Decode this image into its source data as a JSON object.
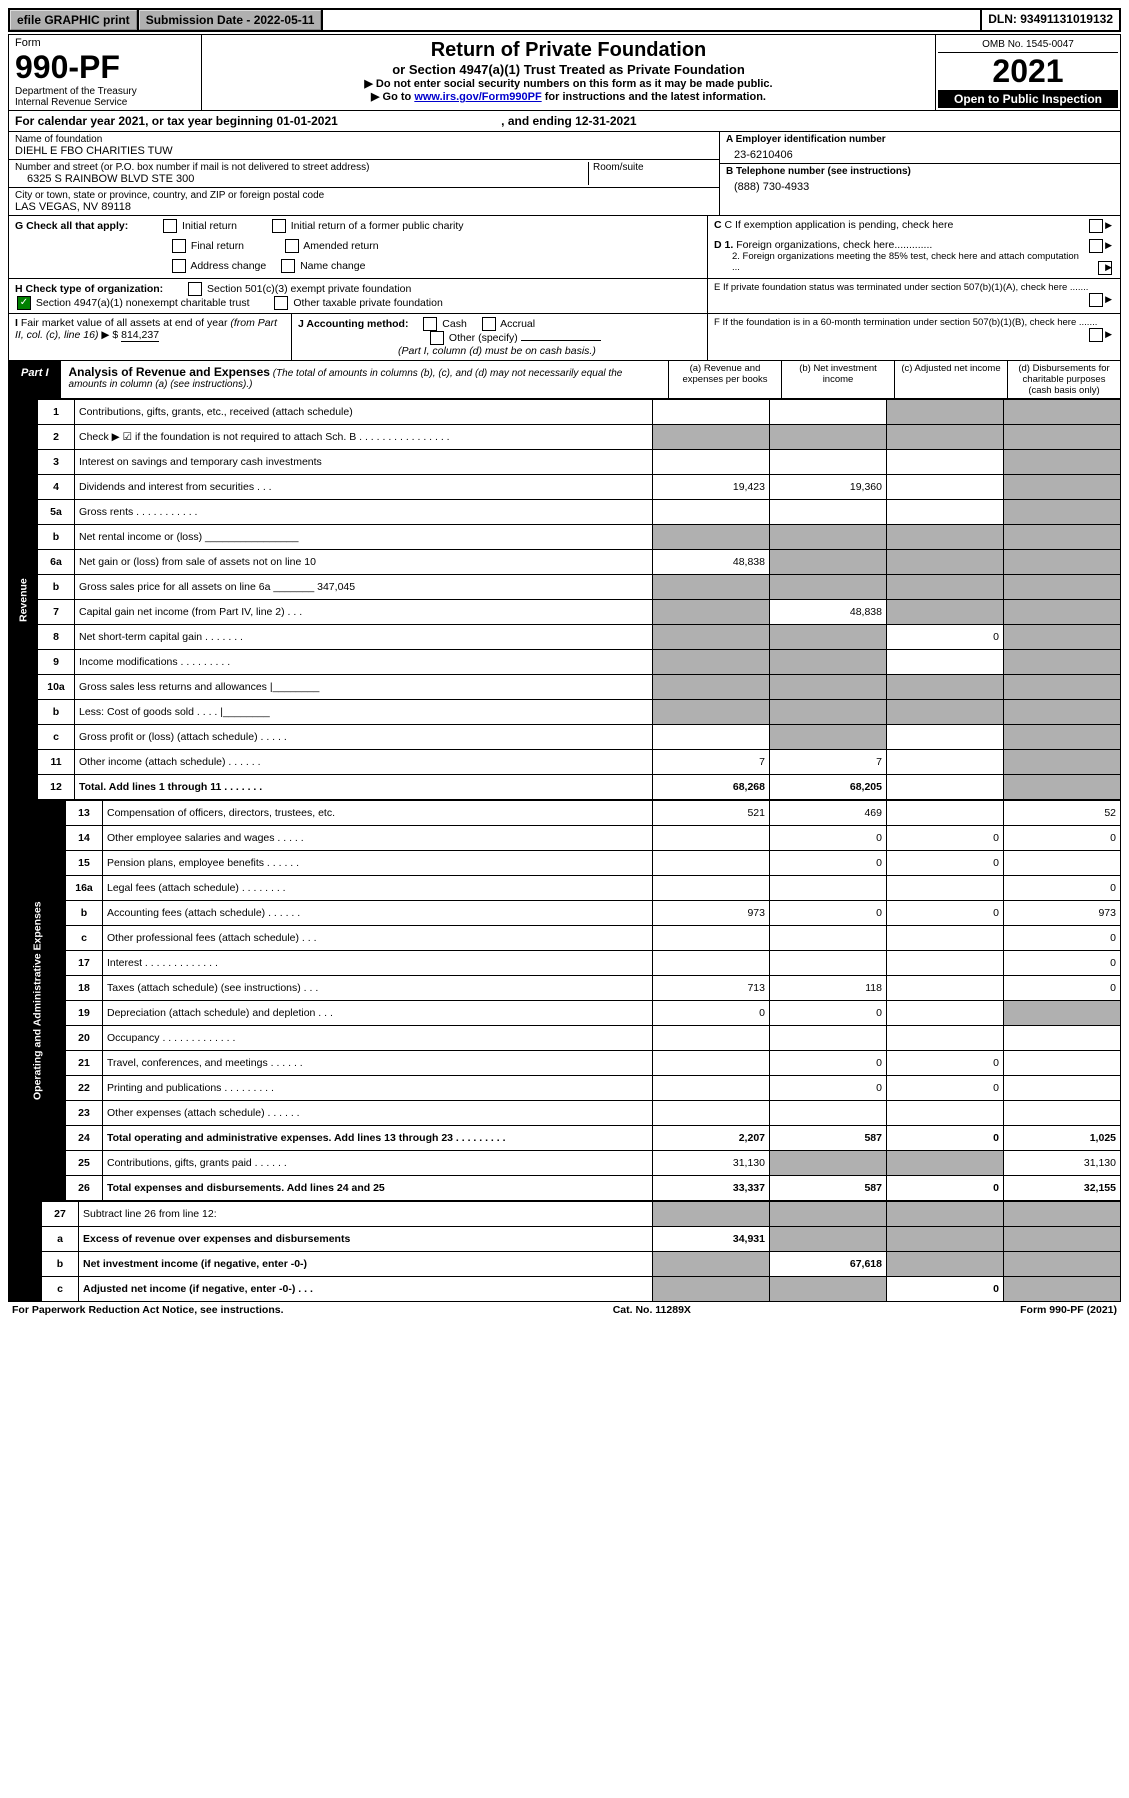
{
  "top": {
    "efile": "efile GRAPHIC print",
    "sub_label": "Submission Date - 2022-05-11",
    "dln": "DLN: 93491131019132"
  },
  "hdr": {
    "form": "Form",
    "number": "990-PF",
    "dept": "Department of the Treasury",
    "irs": "Internal Revenue Service",
    "title": "Return of Private Foundation",
    "subtitle": "or Section 4947(a)(1) Trust Treated as Private Foundation",
    "note1": "▶ Do not enter social security numbers on this form as it may be made public.",
    "note2_pre": "▶ Go to ",
    "note2_link": "www.irs.gov/Form990PF",
    "note2_post": " for instructions and the latest information.",
    "omb": "OMB No. 1545-0047",
    "year": "2021",
    "open": "Open to Public Inspection"
  },
  "cal": {
    "text": "For calendar year 2021, or tax year beginning 01-01-2021",
    "end": ", and ending 12-31-2021"
  },
  "id": {
    "name_lbl": "Name of foundation",
    "name": "DIEHL E FBO CHARITIES TUW",
    "addr_lbl": "Number and street (or P.O. box number if mail is not delivered to street address)",
    "addr": "6325 S RAINBOW BLVD STE 300",
    "room_lbl": "Room/suite",
    "city_lbl": "City or town, state or province, country, and ZIP or foreign postal code",
    "city": "LAS VEGAS, NV  89118",
    "ein_lbl": "A Employer identification number",
    "ein": "23-6210406",
    "tel_lbl": "B Telephone number (see instructions)",
    "tel": "(888) 730-4933",
    "c_lbl": "C If exemption application is pending, check here",
    "d1_lbl": "D 1. Foreign organizations, check here.............",
    "d2_lbl": "2. Foreign organizations meeting the 85% test, check here and attach computation ...",
    "e_lbl": "E  If private foundation status was terminated under section 507(b)(1)(A), check here .......",
    "f_lbl": "F  If the foundation is in a 60-month termination under section 507(b)(1)(B), check here ......."
  },
  "g": {
    "lbl": "G Check all that apply:",
    "o1": "Initial return",
    "o2": "Final return",
    "o3": "Address change",
    "o4": "Initial return of a former public charity",
    "o5": "Amended return",
    "o6": "Name change"
  },
  "h": {
    "lbl": "H Check type of organization:",
    "o1": "Section 501(c)(3) exempt private foundation",
    "o2": "Section 4947(a)(1) nonexempt charitable trust",
    "o3": "Other taxable private foundation"
  },
  "i": {
    "lbl": "I Fair market value of all assets at end of year (from Part II, col. (c), line 16) ▶ $",
    "val": "814,237"
  },
  "j": {
    "lbl": "J Accounting method:",
    "o1": "Cash",
    "o2": "Accrual",
    "o3": "Other (specify)",
    "note": "(Part I, column (d) must be on cash basis.)"
  },
  "part1": {
    "lbl": "Part I",
    "title": "Analysis of Revenue and Expenses",
    "note": " (The total of amounts in columns (b), (c), and (d) may not necessarily equal the amounts in column (a) (see instructions).)",
    "ca": "(a)  Revenue and expenses per books",
    "cb": "(b)  Net investment income",
    "cc": "(c)  Adjusted net income",
    "cd": "(d)  Disbursements for charitable purposes (cash basis only)"
  },
  "side": {
    "rev": "Revenue",
    "exp": "Operating and Administrative Expenses"
  },
  "lines": [
    {
      "n": "1",
      "d": "Contributions, gifts, grants, etc., received (attach schedule)",
      "a": "",
      "b": "",
      "c": "g",
      "dd": "g"
    },
    {
      "n": "2",
      "d": "Check ▶ ☑ if the foundation is not required to attach Sch. B   .  .  .  .  .  .  .  .  .  .  .  .  .  .  .  .",
      "a": "g",
      "b": "g",
      "c": "g",
      "dd": "g"
    },
    {
      "n": "3",
      "d": "Interest on savings and temporary cash investments",
      "a": "",
      "b": "",
      "c": "",
      "dd": "g"
    },
    {
      "n": "4",
      "d": "Dividends and interest from securities    .   .   .",
      "a": "19,423",
      "b": "19,360",
      "c": "",
      "dd": "g"
    },
    {
      "n": "5a",
      "d": "Gross rents     .   .   .   .   .   .   .   .   .   .   .",
      "a": "",
      "b": "",
      "c": "",
      "dd": "g"
    },
    {
      "n": "b",
      "d": "Net rental income or (loss)   ________________",
      "a": "g",
      "b": "g",
      "c": "g",
      "dd": "g"
    },
    {
      "n": "6a",
      "d": "Net gain or (loss) from sale of assets not on line 10",
      "a": "48,838",
      "b": "g",
      "c": "g",
      "dd": "g"
    },
    {
      "n": "b",
      "d": "Gross sales price for all assets on line 6a _______ 347,045",
      "a": "g",
      "b": "g",
      "c": "g",
      "dd": "g"
    },
    {
      "n": "7",
      "d": "Capital gain net income (from Part IV, line 2)    .   .   .",
      "a": "g",
      "b": "48,838",
      "c": "g",
      "dd": "g"
    },
    {
      "n": "8",
      "d": "Net short-term capital gain   .   .   .   .   .   .   .",
      "a": "g",
      "b": "g",
      "c": "0",
      "dd": "g"
    },
    {
      "n": "9",
      "d": "Income modifications  .   .   .   .   .   .   .   .   .",
      "a": "g",
      "b": "g",
      "c": "",
      "dd": "g"
    },
    {
      "n": "10a",
      "d": "Gross sales less returns and allowances   |________",
      "a": "g",
      "b": "g",
      "c": "g",
      "dd": "g"
    },
    {
      "n": "b",
      "d": "Less: Cost of goods sold     .   .   .   .   |________",
      "a": "g",
      "b": "g",
      "c": "g",
      "dd": "g"
    },
    {
      "n": "c",
      "d": "Gross profit or (loss) (attach schedule)     .   .   .   .   .",
      "a": "",
      "b": "g",
      "c": "",
      "dd": "g"
    },
    {
      "n": "11",
      "d": "Other income (attach schedule)    .   .   .   .   .   .",
      "a": "7",
      "b": "7",
      "c": "",
      "dd": "g"
    },
    {
      "n": "12",
      "d": "Total. Add lines 1 through 11    .   .   .   .   .   .   .",
      "a": "68,268",
      "b": "68,205",
      "c": "",
      "dd": "g",
      "bold": true
    }
  ],
  "exp": [
    {
      "n": "13",
      "d": "Compensation of officers, directors, trustees, etc.",
      "a": "521",
      "b": "469",
      "c": "",
      "dd": "52"
    },
    {
      "n": "14",
      "d": "Other employee salaries and wages    .   .   .   .   .",
      "a": "",
      "b": "0",
      "c": "0",
      "dd": "0"
    },
    {
      "n": "15",
      "d": "Pension plans, employee benefits   .   .   .   .   .   .",
      "a": "",
      "b": "0",
      "c": "0",
      "dd": ""
    },
    {
      "n": "16a",
      "d": "Legal fees (attach schedule)  .   .   .   .   .   .   .   .",
      "a": "",
      "b": "",
      "c": "",
      "dd": "0"
    },
    {
      "n": "b",
      "d": "Accounting fees (attach schedule)  .   .   .   .   .   .",
      "a": "973",
      "b": "0",
      "c": "0",
      "dd": "973"
    },
    {
      "n": "c",
      "d": "Other professional fees (attach schedule)    .   .   .",
      "a": "",
      "b": "",
      "c": "",
      "dd": "0"
    },
    {
      "n": "17",
      "d": "Interest   .   .   .   .   .   .   .   .   .   .   .   .   .",
      "a": "",
      "b": "",
      "c": "",
      "dd": "0"
    },
    {
      "n": "18",
      "d": "Taxes (attach schedule) (see instructions)    .   .   .",
      "a": "713",
      "b": "118",
      "c": "",
      "dd": "0"
    },
    {
      "n": "19",
      "d": "Depreciation (attach schedule) and depletion    .   .   .",
      "a": "0",
      "b": "0",
      "c": "",
      "dd": "g"
    },
    {
      "n": "20",
      "d": "Occupancy  .   .   .   .   .   .   .   .   .   .   .   .   .",
      "a": "",
      "b": "",
      "c": "",
      "dd": ""
    },
    {
      "n": "21",
      "d": "Travel, conferences, and meetings  .   .   .   .   .   .",
      "a": "",
      "b": "0",
      "c": "0",
      "dd": ""
    },
    {
      "n": "22",
      "d": "Printing and publications  .   .   .   .   .   .   .   .   .",
      "a": "",
      "b": "0",
      "c": "0",
      "dd": ""
    },
    {
      "n": "23",
      "d": "Other expenses (attach schedule)   .   .   .   .   .   .",
      "a": "",
      "b": "",
      "c": "",
      "dd": ""
    },
    {
      "n": "24",
      "d": "Total operating and administrative expenses. Add lines 13 through 23    .   .   .   .   .   .   .   .   .",
      "a": "2,207",
      "b": "587",
      "c": "0",
      "dd": "1,025",
      "bold": true
    },
    {
      "n": "25",
      "d": "Contributions, gifts, grants paid     .   .   .   .   .   .",
      "a": "31,130",
      "b": "g",
      "c": "g",
      "dd": "31,130"
    },
    {
      "n": "26",
      "d": "Total expenses and disbursements. Add lines 24 and 25",
      "a": "33,337",
      "b": "587",
      "c": "0",
      "dd": "32,155",
      "bold": true
    }
  ],
  "net": [
    {
      "n": "27",
      "d": "Subtract line 26 from line 12:",
      "a": "g",
      "b": "g",
      "c": "g",
      "dd": "g"
    },
    {
      "n": "a",
      "d": "Excess of revenue over expenses and disbursements",
      "a": "34,931",
      "b": "g",
      "c": "g",
      "dd": "g",
      "bold": true
    },
    {
      "n": "b",
      "d": "Net investment income (if negative, enter -0-)",
      "a": "g",
      "b": "67,618",
      "c": "g",
      "dd": "g",
      "bold": true
    },
    {
      "n": "c",
      "d": "Adjusted net income (if negative, enter -0-)    .   .   .",
      "a": "g",
      "b": "g",
      "c": "0",
      "dd": "g",
      "bold": true
    }
  ],
  "foot": {
    "l": "For Paperwork Reduction Act Notice, see instructions.",
    "c": "Cat. No. 11289X",
    "r": "Form 990-PF (2021)"
  }
}
